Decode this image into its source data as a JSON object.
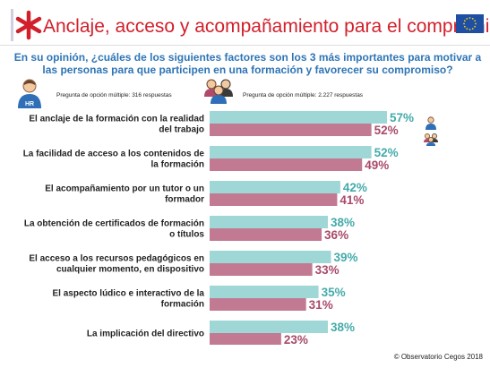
{
  "header": {
    "title": "Anclaje, acceso y acompañamiento para el compromiso",
    "question": "En su opinión, ¿cuáles de los siguientes factores son los 3 más importantes para motivar a las personas para que participen en una formación y favorecer su compromiso?",
    "logo_icon": "asterisk-logo-icon",
    "flag_icon": "eu-flag-icon"
  },
  "respondents": {
    "hr": {
      "icon": "hr-person-icon",
      "badge": "HR",
      "text": "Pregunta de opción múltiple: 316 respuestas"
    },
    "employees": {
      "icon": "employees-group-icon",
      "text": "Pregunta de opción múltiple: 2.227 respuestas"
    }
  },
  "colors": {
    "title": "#d1202b",
    "question": "#2e75b6",
    "hr_bar": "#9fd6d6",
    "employee_bar": "#c27a93",
    "hr_label": "#45aaaa",
    "employee_label": "#a84a6a"
  },
  "chart_data": {
    "type": "bar",
    "orientation": "horizontal",
    "categories": [
      [
        "El anclaje de la formación con la realidad",
        "del trabajo"
      ],
      [
        "La facilidad de acceso a los contenidos de",
        "la formación"
      ],
      [
        "El acompañamiento por un tutor o un",
        "formador"
      ],
      [
        "La obtención de certificados de formación",
        "o títulos"
      ],
      [
        "El acceso a los recursos pedagógicos en",
        "cualquier momento, en dispositivo"
      ],
      [
        "El aspecto lúdico e interactivo de la",
        "formación"
      ],
      [
        "La implicación del directivo"
      ]
    ],
    "series": [
      {
        "key": "hr",
        "values": [
          57,
          52,
          42,
          38,
          39,
          35,
          38
        ],
        "labels": [
          "57%",
          "52%",
          "42%",
          "38%",
          "39%",
          "35%",
          "38%"
        ]
      },
      {
        "key": "employees",
        "values": [
          52,
          49,
          41,
          36,
          33,
          31,
          23
        ],
        "labels": [
          "52%",
          "49%",
          "41%",
          "36%",
          "33%",
          "31%",
          "23%"
        ]
      }
    ],
    "unit": "%",
    "xlim": [
      0,
      57
    ],
    "grid": false,
    "legend": "icons at top"
  },
  "footer": {
    "copyright": "© Observatorio Cegos 2018"
  }
}
